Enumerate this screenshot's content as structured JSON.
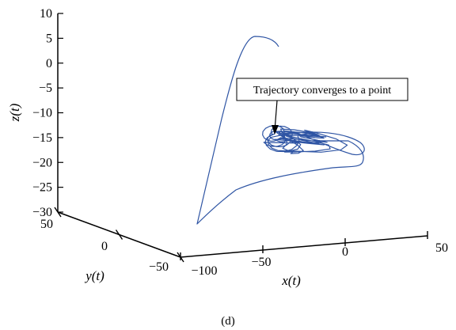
{
  "chart_data": {
    "type": "line",
    "projection": "3d",
    "title": "",
    "xlabel": "x(t)",
    "ylabel": "y(t)",
    "zlabel": "z(t)",
    "xlim": [
      -100,
      50
    ],
    "ylim": [
      -50,
      50
    ],
    "zlim": [
      -30,
      10
    ],
    "x_ticks": [
      "−100",
      "−50",
      "0",
      "50"
    ],
    "y_ticks": [
      "−50",
      "0",
      "50"
    ],
    "z_ticks": [
      "10",
      "5",
      "0",
      "−5",
      "−10",
      "−15",
      "−20",
      "−25",
      "−30"
    ],
    "grid": false,
    "legend": "none",
    "series": [
      {
        "color": "#2f55a4",
        "description_points_xyz": [
          [
            5,
            -10,
            2
          ],
          [
            -5,
            -10,
            4
          ],
          [
            -15,
            -10,
            3
          ],
          [
            -25,
            -10,
            -2
          ],
          [
            -35,
            -5,
            -10
          ],
          [
            -45,
            0,
            -18
          ],
          [
            -55,
            5,
            -25
          ],
          [
            -60,
            5,
            -28
          ],
          [
            -50,
            0,
            -25
          ],
          [
            -30,
            -5,
            -22
          ],
          [
            -10,
            -10,
            -20
          ],
          [
            10,
            -15,
            -18
          ],
          [
            20,
            -15,
            -16
          ],
          [
            15,
            -10,
            -15
          ],
          [
            0,
            -5,
            -14
          ],
          [
            -10,
            -5,
            -14
          ]
        ]
      }
    ],
    "annotation": {
      "text": "Trajectory converges to a point",
      "target_xyz": [
        -10,
        -5,
        -14
      ]
    }
  },
  "caption": "(d)"
}
